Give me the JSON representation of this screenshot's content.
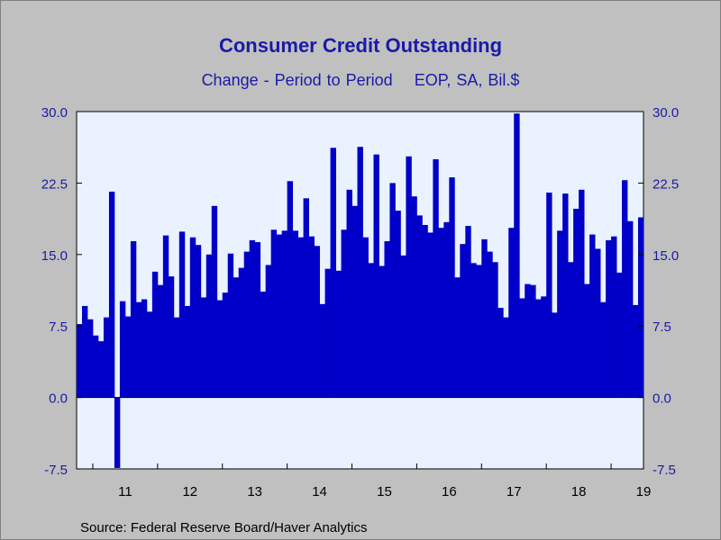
{
  "chart_data": {
    "type": "bar",
    "title": "Consumer Credit Outstanding",
    "subtitle_left": "Change - Period to Period",
    "subtitle_right": "EOP, SA, Bil.$",
    "source": "Source:  Federal Reserve Board/Haver Analytics",
    "ylim": [
      -7.5,
      30.0
    ],
    "yticks": [
      "30.0",
      "22.5",
      "15.0",
      "7.5",
      "0.0",
      "-7.5"
    ],
    "xtick_labels": [
      "11",
      "12",
      "13",
      "14",
      "15",
      "16",
      "17",
      "18",
      "19"
    ],
    "frequency": "monthly",
    "start": "2010-10",
    "values": [
      7.7,
      9.6,
      8.2,
      6.5,
      5.9,
      8.4,
      21.6,
      -7.4,
      10.1,
      8.5,
      16.4,
      10.0,
      10.3,
      9.0,
      13.2,
      11.8,
      17.0,
      12.7,
      8.4,
      17.4,
      9.6,
      16.8,
      16.0,
      10.5,
      15.0,
      20.1,
      10.2,
      11.0,
      15.1,
      12.6,
      13.6,
      15.3,
      16.5,
      16.3,
      11.1,
      13.9,
      17.6,
      17.1,
      17.5,
      22.7,
      17.5,
      16.8,
      20.9,
      16.9,
      15.9,
      9.8,
      13.5,
      26.2,
      13.3,
      17.6,
      21.8,
      20.1,
      26.3,
      16.8,
      14.1,
      25.5,
      13.8,
      16.4,
      22.5,
      19.6,
      14.9,
      25.3,
      21.1,
      19.1,
      18.1,
      17.3,
      25.0,
      17.8,
      18.4,
      23.1,
      12.6,
      16.1,
      18.0,
      14.1,
      13.9,
      16.6,
      15.3,
      14.2,
      9.4,
      8.4,
      17.8,
      29.8,
      10.4,
      11.9,
      11.8,
      10.3,
      10.6,
      21.5,
      8.9,
      17.5,
      21.4,
      14.2,
      19.8,
      21.8,
      11.9,
      17.1,
      15.6,
      10.0,
      16.5,
      16.9,
      13.1,
      22.8,
      18.5,
      9.7,
      18.9
    ],
    "color": "#0000c8",
    "grid": false
  }
}
